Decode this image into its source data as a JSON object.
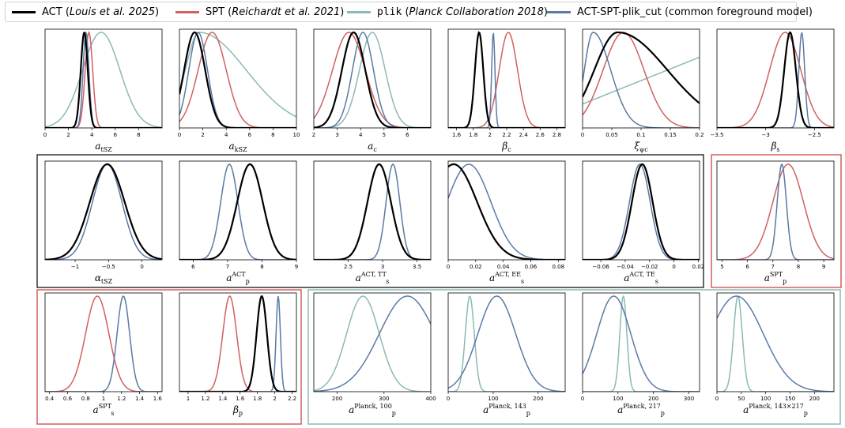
{
  "legend": [
    {
      "color": "#000000",
      "label": "ACT",
      "ref": "Louis et al. 2025"
    },
    {
      "color": "#d1605e",
      "label": "SPT",
      "ref": "Reichardt et al. 2021"
    },
    {
      "color": "#8bbab4",
      "label": "plik",
      "ref": "Planck Collaboration 2018"
    },
    {
      "color": "#5a7aa3",
      "label": "ACT-SPT-plik_cut",
      "ref": "common foreground model"
    }
  ],
  "colors": {
    "ACT": "#000000",
    "SPT": "#d1605e",
    "plik": "#8bbab4",
    "combined": "#5a7aa3"
  },
  "chart_data": [
    {
      "type": "line",
      "xlabel": "a_tSZ",
      "xlim": [
        0,
        10
      ],
      "ticks": [
        0,
        2,
        4,
        6,
        8
      ],
      "series": [
        {
          "dataset": "plik",
          "shape": "gauss",
          "mu": 4.8,
          "sigma": 1.6
        },
        {
          "dataset": "SPT",
          "shape": "gauss",
          "mu": 3.75,
          "sigma": 0.32
        },
        {
          "dataset": "combined",
          "shape": "gauss",
          "mu": 3.5,
          "sigma": 0.25
        },
        {
          "dataset": "ACT",
          "shape": "gauss",
          "mu": 3.35,
          "sigma": 0.3
        }
      ]
    },
    {
      "type": "line",
      "xlabel": "a_kSZ",
      "xlim": [
        0,
        10
      ],
      "ticks": [
        0,
        2,
        4,
        6,
        8,
        10
      ],
      "series": [
        {
          "dataset": "plik",
          "shape": "skew",
          "mu": 1.7,
          "sigmaL": 1.2,
          "sigmaR": 4.0
        },
        {
          "dataset": "SPT",
          "shape": "gauss",
          "mu": 2.8,
          "sigma": 1.2
        },
        {
          "dataset": "combined",
          "shape": "gauss",
          "mu": 1.6,
          "sigma": 0.8
        },
        {
          "dataset": "ACT",
          "shape": "gauss",
          "mu": 1.3,
          "sigma": 0.9
        }
      ]
    },
    {
      "type": "line",
      "xlabel": "a_c",
      "xlim": [
        2,
        7
      ],
      "ticks": [
        2,
        3,
        4,
        5,
        6
      ],
      "series": [
        {
          "dataset": "SPT",
          "shape": "gauss",
          "mu": 3.5,
          "sigma": 0.7
        },
        {
          "dataset": "plik",
          "shape": "gauss",
          "mu": 4.5,
          "sigma": 0.55
        },
        {
          "dataset": "combined",
          "shape": "gauss",
          "mu": 4.1,
          "sigma": 0.45
        },
        {
          "dataset": "ACT",
          "shape": "gauss",
          "mu": 3.7,
          "sigma": 0.5
        }
      ]
    },
    {
      "type": "line",
      "xlabel": "β_c",
      "xlim": [
        1.5,
        2.9
      ],
      "ticks": [
        1.6,
        1.8,
        2.0,
        2.2,
        2.4,
        2.6,
        2.8
      ],
      "series": [
        {
          "dataset": "SPT",
          "shape": "gauss",
          "mu": 2.22,
          "sigma": 0.11
        },
        {
          "dataset": "combined",
          "shape": "gauss",
          "mu": 2.04,
          "sigma": 0.02
        },
        {
          "dataset": "ACT",
          "shape": "gauss",
          "mu": 1.87,
          "sigma": 0.05
        }
      ]
    },
    {
      "type": "line",
      "xlabel": "ξ_ψc",
      "xlim": [
        0,
        0.2
      ],
      "ticks": [
        0.0,
        0.05,
        0.1,
        0.15,
        0.2
      ],
      "series": [
        {
          "dataset": "plik",
          "shape": "linear",
          "y0": 0.25,
          "y1": 0.74
        },
        {
          "dataset": "SPT",
          "shape": "gauss",
          "mu": 0.07,
          "sigma": 0.035
        },
        {
          "dataset": "combined",
          "shape": "skew",
          "mu": 0.018,
          "sigmaL": 0.015,
          "sigmaR": 0.03
        },
        {
          "dataset": "ACT",
          "shape": "skew",
          "mu": 0.06,
          "sigmaL": 0.04,
          "sigmaR": 0.085
        }
      ]
    },
    {
      "type": "line",
      "xlabel": "β_s",
      "xlim": [
        -3.5,
        -2.3
      ],
      "ticks": [
        -3.5,
        -3.0,
        -2.5
      ],
      "series": [
        {
          "dataset": "SPT",
          "shape": "gauss",
          "mu": -2.8,
          "sigma": 0.16
        },
        {
          "dataset": "combined",
          "shape": "gauss",
          "mu": -2.63,
          "sigma": 0.03
        },
        {
          "dataset": "ACT",
          "shape": "gauss",
          "mu": -2.75,
          "sigma": 0.06
        }
      ]
    },
    {
      "type": "line",
      "xlabel": "α_tSZ",
      "xlim": [
        -1.45,
        0.3
      ],
      "ticks": [
        -1.0,
        -0.5,
        0.0
      ],
      "series": [
        {
          "dataset": "combined",
          "shape": "gauss",
          "mu": -0.52,
          "sigma": 0.22
        },
        {
          "dataset": "ACT",
          "shape": "gauss",
          "mu": -0.52,
          "sigma": 0.26
        }
      ]
    },
    {
      "type": "line",
      "xlabel": "a_p^ACT",
      "xlim": [
        5.6,
        9.0
      ],
      "ticks": [
        6,
        7,
        8,
        9
      ],
      "series": [
        {
          "dataset": "combined",
          "shape": "gauss",
          "mu": 7.05,
          "sigma": 0.25
        },
        {
          "dataset": "ACT",
          "shape": "gauss",
          "mu": 7.65,
          "sigma": 0.37
        }
      ]
    },
    {
      "type": "line",
      "xlabel": "a_s^ACT, TT",
      "xlim": [
        2.0,
        3.7
      ],
      "ticks": [
        2.5,
        3.0,
        3.5
      ],
      "series": [
        {
          "dataset": "combined",
          "shape": "gauss",
          "mu": 3.15,
          "sigma": 0.1
        },
        {
          "dataset": "ACT",
          "shape": "gauss",
          "mu": 2.95,
          "sigma": 0.17
        }
      ]
    },
    {
      "type": "line",
      "xlabel": "a_s^ACT, EE",
      "xlim": [
        0.0,
        0.085
      ],
      "ticks": [
        0.0,
        0.02,
        0.04,
        0.06,
        0.08
      ],
      "series": [
        {
          "dataset": "combined",
          "shape": "gauss",
          "mu": 0.015,
          "sigma": 0.016
        },
        {
          "dataset": "ACT",
          "shape": "gauss",
          "mu": 0.004,
          "sigma": 0.017
        }
      ]
    },
    {
      "type": "line",
      "xlabel": "a_s^ACT, TE",
      "xlim": [
        -0.075,
        0.021
      ],
      "ticks": [
        -0.06,
        -0.04,
        -0.02,
        0.0,
        0.02
      ],
      "series": [
        {
          "dataset": "combined",
          "shape": "gauss",
          "mu": -0.028,
          "sigma": 0.0085
        },
        {
          "dataset": "ACT",
          "shape": "gauss",
          "mu": -0.026,
          "sigma": 0.0085
        }
      ]
    },
    {
      "type": "line",
      "xlabel": "a_p^SPT",
      "xlim": [
        4.8,
        9.4
      ],
      "ticks": [
        5,
        6,
        7,
        8,
        9
      ],
      "series": [
        {
          "dataset": "SPT",
          "shape": "gauss",
          "mu": 7.6,
          "sigma": 0.6
        },
        {
          "dataset": "combined",
          "shape": "gauss",
          "mu": 7.35,
          "sigma": 0.18
        }
      ]
    },
    {
      "type": "line",
      "xlabel": "a_s^SPT",
      "xlim": [
        0.35,
        1.65
      ],
      "ticks": [
        0.4,
        0.6,
        0.8,
        1.0,
        1.2,
        1.4,
        1.6
      ],
      "series": [
        {
          "dataset": "SPT",
          "shape": "gauss",
          "mu": 0.93,
          "sigma": 0.13
        },
        {
          "dataset": "combined",
          "shape": "gauss",
          "mu": 1.22,
          "sigma": 0.07
        }
      ]
    },
    {
      "type": "line",
      "xlabel": "β_p",
      "xlim": [
        0.9,
        2.25
      ],
      "ticks": [
        1.0,
        1.2,
        1.4,
        1.6,
        1.8,
        2.0,
        2.2
      ],
      "series": [
        {
          "dataset": "SPT",
          "shape": "gauss",
          "mu": 1.48,
          "sigma": 0.08
        },
        {
          "dataset": "combined",
          "shape": "gauss",
          "mu": 2.04,
          "sigma": 0.025
        },
        {
          "dataset": "ACT",
          "shape": "gauss",
          "mu": 1.85,
          "sigma": 0.06
        }
      ]
    },
    {
      "type": "line",
      "xlabel": "a_p^Planck, 100",
      "xlim": [
        150,
        400
      ],
      "ticks": [
        200,
        300,
        400
      ],
      "series": [
        {
          "dataset": "plik",
          "shape": "gauss",
          "mu": 255,
          "sigma": 35
        },
        {
          "dataset": "combined",
          "shape": "gauss",
          "mu": 350,
          "sigma": 60
        }
      ]
    },
    {
      "type": "line",
      "xlabel": "a_p^Planck, 143",
      "xlim": [
        0,
        260
      ],
      "ticks": [
        0,
        100,
        200
      ],
      "series": [
        {
          "dataset": "plik",
          "shape": "gauss",
          "mu": 48,
          "sigma": 10
        },
        {
          "dataset": "combined",
          "shape": "gauss",
          "mu": 108,
          "sigma": 42
        }
      ]
    },
    {
      "type": "line",
      "xlabel": "a_p^Planck, 217",
      "xlim": [
        0,
        330
      ],
      "ticks": [
        0,
        100,
        200,
        300
      ],
      "series": [
        {
          "dataset": "plik",
          "shape": "gauss",
          "mu": 115,
          "sigma": 10
        },
        {
          "dataset": "combined",
          "shape": "gauss",
          "mu": 88,
          "sigma": 48
        }
      ]
    },
    {
      "type": "line",
      "xlabel": "a_p^Planck, 143×217",
      "xlim": [
        0,
        240
      ],
      "ticks": [
        0,
        50,
        100,
        150,
        200
      ],
      "series": [
        {
          "dataset": "plik",
          "shape": "gauss",
          "mu": 43,
          "sigma": 9
        },
        {
          "dataset": "combined",
          "shape": "gauss",
          "mu": 40,
          "sigma": 55
        }
      ]
    }
  ]
}
